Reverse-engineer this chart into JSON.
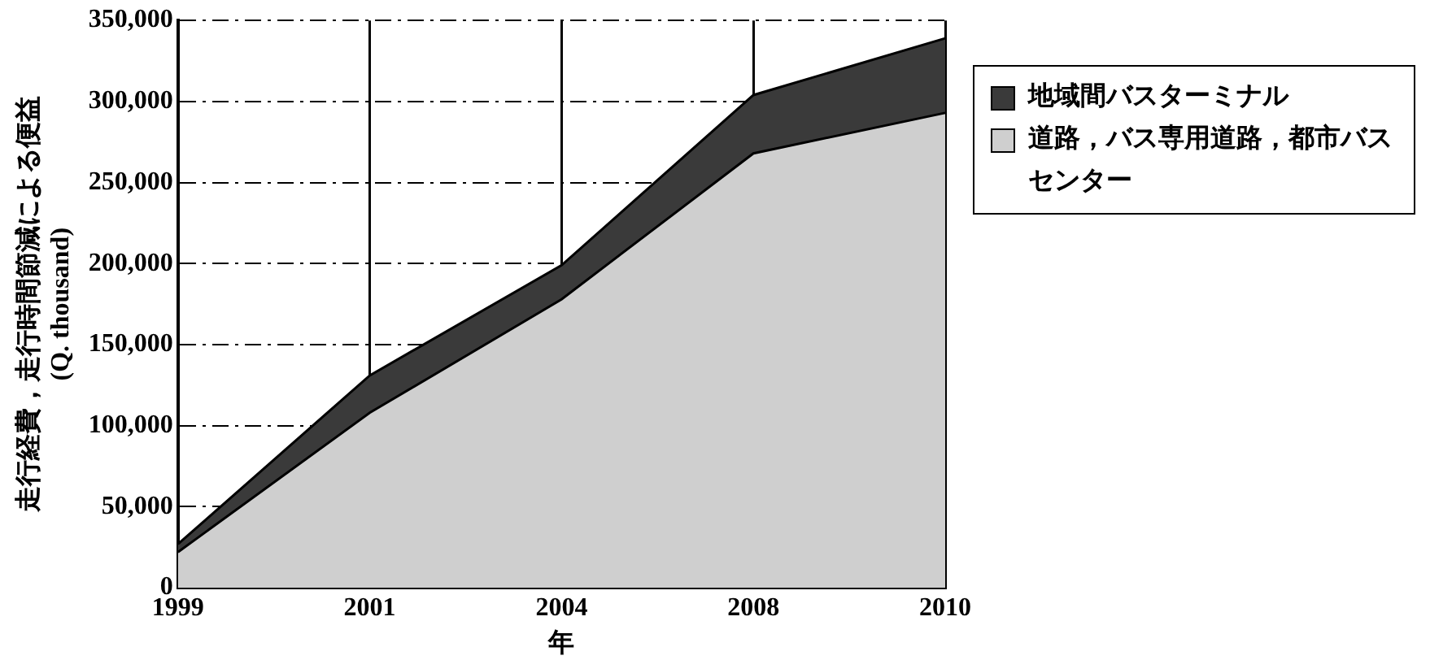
{
  "chart_data": {
    "type": "area",
    "stacked": true,
    "xlabel": "年",
    "ylabel": "走行経費，走行時間節減による便益\n(Q. thousand)",
    "categories": [
      "1999",
      "2001",
      "2004",
      "2008",
      "2010"
    ],
    "series": [
      {
        "name": "道路，バス専用道路，都市バスセンター",
        "color": "#cfcfcf",
        "values": [
          22000,
          108000,
          178000,
          268000,
          293000
        ]
      },
      {
        "name": "地域間バスターミナル",
        "color": "#3a3a3a",
        "values": [
          5000,
          23000,
          21000,
          36000,
          46000
        ]
      }
    ],
    "ylim": [
      0,
      350000
    ],
    "yticks": [
      {
        "value": 0,
        "label": "0"
      },
      {
        "value": 50000,
        "label": "50,000"
      },
      {
        "value": 100000,
        "label": "100,000"
      },
      {
        "value": 150000,
        "label": "150,000"
      },
      {
        "value": 200000,
        "label": "200,000"
      },
      {
        "value": 250000,
        "label": "250,000"
      },
      {
        "value": 300000,
        "label": "300,000"
      },
      {
        "value": 350000,
        "label": "350,000"
      }
    ],
    "grid": true,
    "legend": "right"
  }
}
